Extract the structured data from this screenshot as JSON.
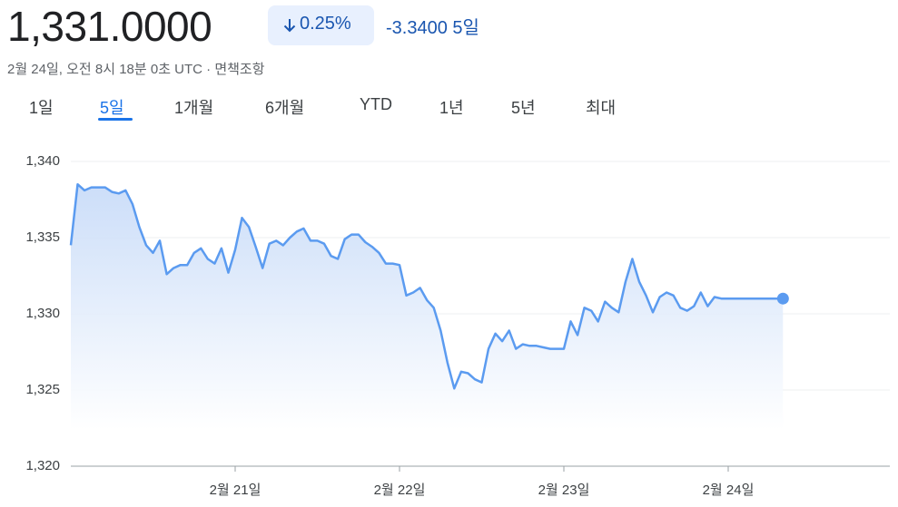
{
  "header": {
    "price": "1,331.0000",
    "change_pct": "0.25%",
    "change_abs": "-3.3400",
    "period": "5일",
    "timestamp": "2월 24일, 오전 8시 18분 0초 UTC · 면책조항",
    "tabs": [
      "1일",
      "5일",
      "1개월",
      "6개월",
      "YTD",
      "1년",
      "5년",
      "최대"
    ],
    "selected_tab": 1
  },
  "chart_data": {
    "type": "line",
    "categories": [
      null,
      null,
      null,
      null,
      null,
      null,
      null,
      null,
      null,
      null,
      null,
      null,
      null,
      null,
      null,
      null,
      null,
      null,
      null,
      null,
      null,
      null,
      null,
      null,
      "2월 21일",
      null,
      null,
      null,
      null,
      null,
      null,
      null,
      null,
      null,
      null,
      null,
      null,
      null,
      null,
      null,
      null,
      null,
      null,
      null,
      null,
      null,
      null,
      null,
      "2월 22일",
      null,
      null,
      null,
      null,
      null,
      null,
      null,
      null,
      null,
      null,
      null,
      null,
      null,
      null,
      null,
      null,
      null,
      null,
      null,
      null,
      null,
      null,
      null,
      "2월 23일",
      null,
      null,
      null,
      null,
      null,
      null,
      null,
      null,
      null,
      null,
      null,
      null,
      null,
      null,
      null,
      null,
      null,
      null,
      null,
      null,
      null,
      null,
      null,
      "2월 24일",
      null,
      null,
      null,
      null,
      null,
      null,
      null,
      null,
      null,
      null,
      null,
      null,
      null,
      null,
      null,
      null,
      null,
      null,
      null,
      null,
      null,
      null,
      null
    ],
    "series": [
      {
        "color": "#5b9bf0",
        "values": [
          1334.5,
          1338.5,
          1338.1,
          1338.3,
          1338.3,
          1338.3,
          1338.0,
          1337.9,
          1338.1,
          1337.2,
          1335.7,
          1334.5,
          1334.0,
          1334.8,
          1332.6,
          1333.0,
          1333.2,
          1333.2,
          1334.0,
          1334.3,
          1333.6,
          1333.3,
          1334.3,
          1332.7,
          1334.2,
          1336.3,
          1335.7,
          1334.4,
          1333.0,
          1334.6,
          1334.8,
          1334.5,
          1335.0,
          1335.4,
          1335.6,
          1334.8,
          1334.8,
          1334.6,
          1333.8,
          1333.6,
          1334.9,
          1335.2,
          1335.2,
          1334.7,
          1334.4,
          1334.0,
          1333.3,
          1333.3,
          1333.2,
          1331.2,
          1331.4,
          1331.7,
          1330.9,
          1330.4,
          1328.9,
          1326.8,
          1325.1,
          1326.2,
          1326.1,
          1325.7,
          1325.5,
          1327.7,
          1328.7,
          1328.2,
          1328.9,
          1327.7,
          1328.0,
          1327.9,
          1327.9,
          1327.8,
          1327.7,
          1327.7,
          1327.7,
          1329.5,
          1328.6,
          1330.4,
          1330.2,
          1329.5,
          1330.8,
          1330.4,
          1330.1,
          1332.1,
          1333.6,
          1332.1,
          1331.2,
          1330.1,
          1331.1,
          1331.4,
          1331.2,
          1330.4,
          1330.2,
          1330.5,
          1331.4,
          1330.5,
          1331.1,
          1331.0,
          1331.0,
          1331.0,
          1331.0,
          1331.0,
          1331.0,
          1331.0,
          1331.0,
          1331.0,
          1331.0,
          null,
          null,
          null,
          null,
          null,
          null,
          null,
          null,
          null,
          null,
          null,
          null,
          null,
          null,
          null
        ]
      }
    ],
    "ylim": [
      1320,
      1340
    ],
    "yticks": [
      {
        "value": 1320,
        "label": "1,320"
      },
      {
        "value": 1325,
        "label": "1,325"
      },
      {
        "value": 1330,
        "label": "1,330"
      },
      {
        "value": 1335,
        "label": "1,335"
      },
      {
        "value": 1340,
        "label": "1,340"
      }
    ],
    "grid": true
  }
}
